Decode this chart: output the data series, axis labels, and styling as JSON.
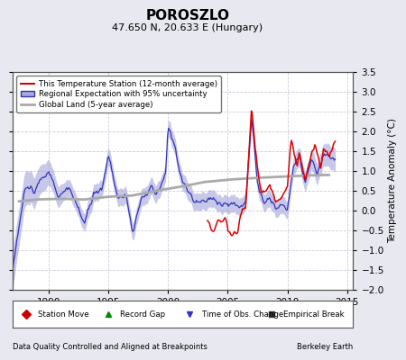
{
  "title": "POROSZLO",
  "subtitle": "47.650 N, 20.633 E (Hungary)",
  "ylabel": "Temperature Anomaly (°C)",
  "xlabel_left": "Data Quality Controlled and Aligned at Breakpoints",
  "xlabel_right": "Berkeley Earth",
  "xlim": [
    1987.0,
    2015.5
  ],
  "ylim": [
    -2.0,
    3.5
  ],
  "yticks": [
    -2,
    -1.5,
    -1,
    -0.5,
    0,
    0.5,
    1,
    1.5,
    2,
    2.5,
    3,
    3.5
  ],
  "xticks": [
    1990,
    1995,
    2000,
    2005,
    2010,
    2015
  ],
  "bg_color": "#e8e8f0",
  "plot_bg_color": "#ffffff",
  "grid_color": "#ccccdd",
  "line_red_color": "#dd0000",
  "line_blue_color": "#3333bb",
  "line_gray_color": "#aaaaaa",
  "fill_blue_color": "#aaaadd",
  "legend_entries": [
    "This Temperature Station (12-month average)",
    "Regional Expectation with 95% uncertainty",
    "Global Land (5-year average)"
  ],
  "bottom_legend": [
    {
      "marker": "D",
      "color": "#cc0000",
      "label": "Station Move"
    },
    {
      "marker": "^",
      "color": "#008800",
      "label": "Record Gap"
    },
    {
      "marker": "v",
      "color": "#3333cc",
      "label": "Time of Obs. Change"
    },
    {
      "marker": "s",
      "color": "#333333",
      "label": "Empirical Break"
    }
  ]
}
